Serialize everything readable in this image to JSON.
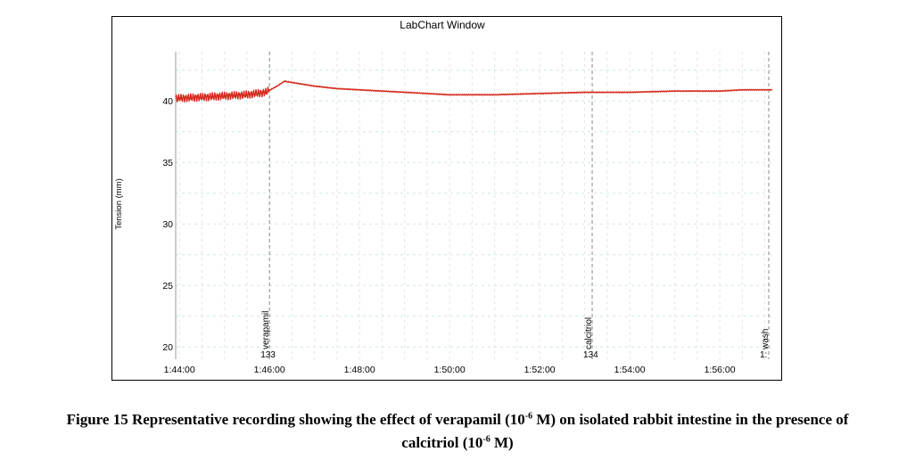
{
  "chart_data": {
    "type": "line",
    "title": "LabChart Window",
    "xlabel": "",
    "ylabel": "Tension (mm)",
    "x_range": [
      "1:43:55",
      "1:57:10"
    ],
    "ylim": [
      19,
      44
    ],
    "y_ticks": [
      20,
      25,
      30,
      35,
      40
    ],
    "x_ticks": [
      "1:44:00",
      "1:46:00",
      "1:48:00",
      "1:50:00",
      "1:52:00",
      "1:54:00",
      "1:56:00"
    ],
    "grid": true,
    "legend": "none",
    "line_color": "#d42a1c",
    "series": [
      {
        "x": [
          "1:43:55",
          "1:44:30",
          "1:45:00",
          "1:45:30",
          "1:45:55",
          "1:46:10",
          "1:46:20",
          "1:46:40",
          "1:47:00",
          "1:47:30",
          "1:48:00",
          "1:49:00",
          "1:50:00",
          "1:51:00",
          "1:52:00",
          "1:53:00",
          "1:54:00",
          "1:55:00",
          "1:55:30",
          "1:56:00",
          "1:56:30",
          "1:57:10"
        ],
        "y": [
          40.2,
          40.3,
          40.4,
          40.5,
          40.7,
          41.2,
          41.6,
          41.4,
          41.2,
          41.0,
          40.9,
          40.7,
          40.5,
          40.5,
          40.6,
          40.7,
          40.7,
          40.8,
          40.8,
          40.8,
          40.9,
          40.9
        ],
        "oscillation_until": "1:46:00"
      }
    ],
    "markers": [
      {
        "time": "1:46:00",
        "label": "verapamil",
        "number": "133"
      },
      {
        "time": "1:53:10",
        "label": "calcitriol",
        "number": "134"
      },
      {
        "time": "1:57:10",
        "label": "wash",
        "number": "1:"
      }
    ]
  },
  "caption": {
    "line1_a": "Figure 15 Representative recording showing the effect of verapamil (10",
    "line1_sup": "-6",
    "line1_b": " M) on isolated rabbit intestine in the presence of",
    "line2_a": "calcitriol (10",
    "line2_sup": "-6",
    "line2_b": " M)"
  }
}
